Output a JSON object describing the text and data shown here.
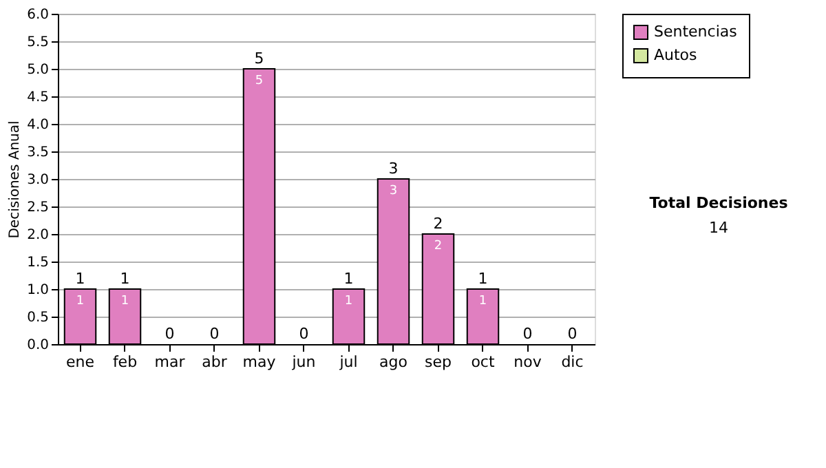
{
  "chart_data": {
    "type": "bar",
    "ylabel": "Decisiones Anual",
    "categories": [
      "ene",
      "feb",
      "mar",
      "abr",
      "may",
      "jun",
      "jul",
      "ago",
      "sep",
      "oct",
      "nov",
      "dic"
    ],
    "series": [
      {
        "name": "Sentencias",
        "color": "#e07fc0",
        "values": [
          1,
          1,
          0,
          0,
          5,
          0,
          1,
          3,
          2,
          1,
          0,
          0
        ],
        "value_labels": [
          "1",
          "1",
          null,
          null,
          "5",
          null,
          "1",
          "3",
          "2",
          "1",
          null,
          null
        ]
      },
      {
        "name": "Autos",
        "color": "#d4e8a0",
        "values": [
          0,
          0,
          0,
          0,
          0,
          0,
          0,
          0,
          0,
          0,
          0,
          0
        ]
      }
    ],
    "stacked": true,
    "totals": [
      "1",
      "1",
      "0",
      "0",
      "5",
      "0",
      "1",
      "3",
      "2",
      "1",
      "0",
      "0"
    ],
    "ylim": [
      0,
      6
    ],
    "yticks": [
      {
        "value": 0,
        "label": "0.0"
      },
      {
        "value": 0.5,
        "label": "0.5"
      },
      {
        "value": 1,
        "label": "1.0"
      },
      {
        "value": 1.5,
        "label": "1.5"
      },
      {
        "value": 2,
        "label": "2.0"
      },
      {
        "value": 2.5,
        "label": "2.5"
      },
      {
        "value": 3,
        "label": "3.0"
      },
      {
        "value": 3.5,
        "label": "3.5"
      },
      {
        "value": 4,
        "label": "4.0"
      },
      {
        "value": 4.5,
        "label": "4.5"
      },
      {
        "value": 5,
        "label": "5.0"
      },
      {
        "value": 5.5,
        "label": "5.5"
      },
      {
        "value": 6,
        "label": "6.0"
      }
    ],
    "grid": "y",
    "legend": "right",
    "annotations": [
      "Total Decisiones",
      "14"
    ]
  }
}
